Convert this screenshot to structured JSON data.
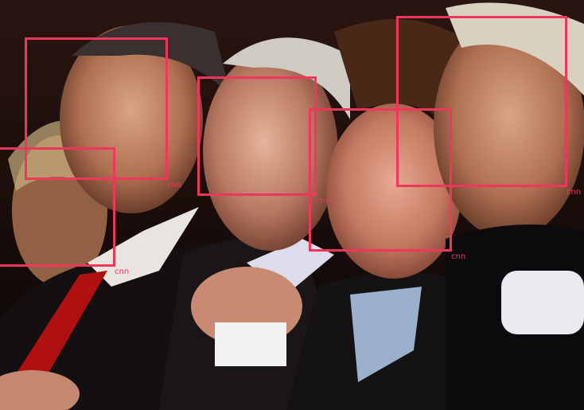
{
  "detections": [
    {
      "label": "cnn"
    },
    {
      "label": "cnn"
    },
    {
      "label": "cnn"
    },
    {
      "label": "cnn"
    },
    {
      "label": "cnn"
    }
  ],
  "colors": {
    "box": "#f0365a",
    "label": "#f0365a",
    "background": "#100b08"
  }
}
